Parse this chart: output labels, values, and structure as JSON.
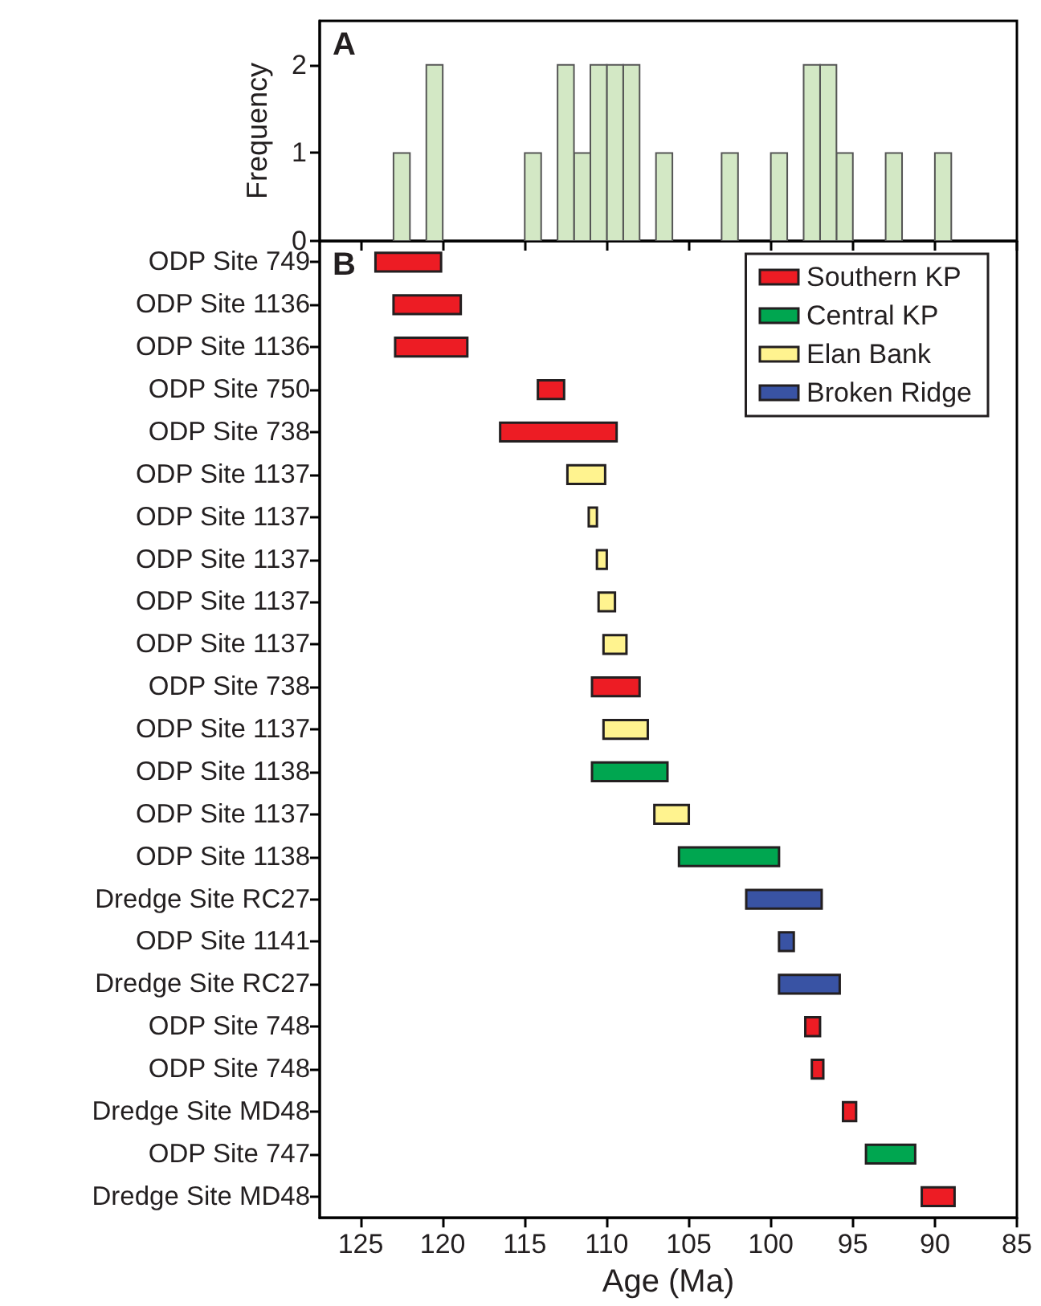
{
  "chart_data": [
    {
      "type": "histogram",
      "ylabel": "Frequency",
      "annotations": [
        "A"
      ],
      "color": "#d3e8c5",
      "grid": false,
      "tick_labels": "y",
      "bins": [
        89,
        90,
        91,
        92,
        93,
        94,
        95,
        96,
        97,
        98,
        99,
        100,
        101,
        102,
        103,
        104,
        105,
        106,
        107,
        108,
        109,
        110,
        111,
        112,
        113,
        114,
        115,
        116,
        117,
        118,
        119,
        120,
        121,
        122,
        123
      ],
      "values": [
        1,
        0,
        0,
        1,
        0,
        0,
        1,
        2,
        2,
        0,
        1,
        0,
        0,
        1,
        0,
        0,
        0,
        1,
        0,
        2,
        2,
        2,
        1,
        2,
        0,
        1,
        0,
        0,
        0,
        0,
        0,
        2,
        0,
        1
      ],
      "xlim": [
        127.5,
        85
      ],
      "xticks": [
        125,
        120,
        115,
        110,
        105,
        100,
        95,
        90,
        85
      ],
      "ylim": [
        0,
        2.5
      ],
      "yticks": [
        0,
        1,
        2
      ]
    },
    {
      "type": "bar",
      "orientation": "horizontal",
      "xlabel": "Age (Ma)",
      "annotations": [
        "B"
      ],
      "legend": "top right",
      "grid": false,
      "categories": [
        "ODP Site 749",
        "ODP Site 1136",
        "ODP Site 1136",
        "ODP Site 750",
        "ODP Site 738",
        "ODP Site 1137",
        "ODP Site 1137",
        "ODP Site 1137",
        "ODP Site 1137",
        "ODP Site 1137",
        "ODP Site 738",
        "ODP Site 1137",
        "ODP Site 1138",
        "ODP Site 1137",
        "ODP Site 1138",
        "Dredge Site RC27",
        "ODP Site 1141",
        "Dredge Site RC27",
        "ODP Site 748",
        "ODP Site 748",
        "Dredge Site MD48",
        "ODP Site 747",
        "Dredge Site MD48"
      ],
      "xlim": [
        127.5,
        85
      ],
      "xticks": [
        125,
        120,
        115,
        110,
        105,
        100,
        95,
        90,
        85
      ],
      "series": [
        {
          "name": "Southern KP",
          "color": "#ed1c24",
          "base": [
            120.1,
            118.9,
            118.5,
            112.6,
            109.4,
            null,
            null,
            null,
            null,
            null,
            108.0,
            null,
            null,
            null,
            null,
            null,
            null,
            null,
            97.0,
            96.8,
            94.8,
            null,
            88.8
          ],
          "values": [
            4.0,
            4.1,
            4.4,
            1.6,
            7.1,
            null,
            null,
            null,
            null,
            null,
            2.9,
            null,
            null,
            null,
            null,
            null,
            null,
            null,
            0.9,
            0.7,
            0.8,
            null,
            2.0
          ]
        },
        {
          "name": "Central KP",
          "color": "#00a650",
          "base": [
            null,
            null,
            null,
            null,
            null,
            null,
            null,
            null,
            null,
            null,
            null,
            null,
            106.3,
            null,
            99.5,
            null,
            null,
            null,
            null,
            null,
            null,
            91.2,
            null
          ],
          "values": [
            null,
            null,
            null,
            null,
            null,
            null,
            null,
            null,
            null,
            null,
            null,
            null,
            4.6,
            null,
            6.1,
            null,
            null,
            null,
            null,
            null,
            null,
            3.0,
            null
          ]
        },
        {
          "name": "Elan Bank",
          "color": "#fff38f",
          "base": [
            null,
            null,
            null,
            null,
            null,
            110.1,
            110.6,
            110.0,
            109.5,
            108.8,
            null,
            107.5,
            null,
            105.0,
            null,
            null,
            null,
            null,
            null,
            null,
            null,
            null,
            null
          ],
          "values": [
            null,
            null,
            null,
            null,
            null,
            2.3,
            0.5,
            0.6,
            1.0,
            1.4,
            null,
            2.7,
            null,
            2.1,
            null,
            null,
            null,
            null,
            null,
            null,
            null,
            null,
            null
          ]
        },
        {
          "name": "Broken Ridge",
          "color": "#3953a4",
          "base": [
            null,
            null,
            null,
            null,
            null,
            null,
            null,
            null,
            null,
            null,
            null,
            null,
            null,
            null,
            null,
            96.9,
            98.6,
            95.8,
            null,
            null,
            null,
            null,
            null
          ],
          "values": [
            null,
            null,
            null,
            null,
            null,
            null,
            null,
            null,
            null,
            null,
            null,
            null,
            null,
            null,
            null,
            4.6,
            0.9,
            3.7,
            null,
            null,
            null,
            null,
            null
          ]
        }
      ]
    }
  ]
}
